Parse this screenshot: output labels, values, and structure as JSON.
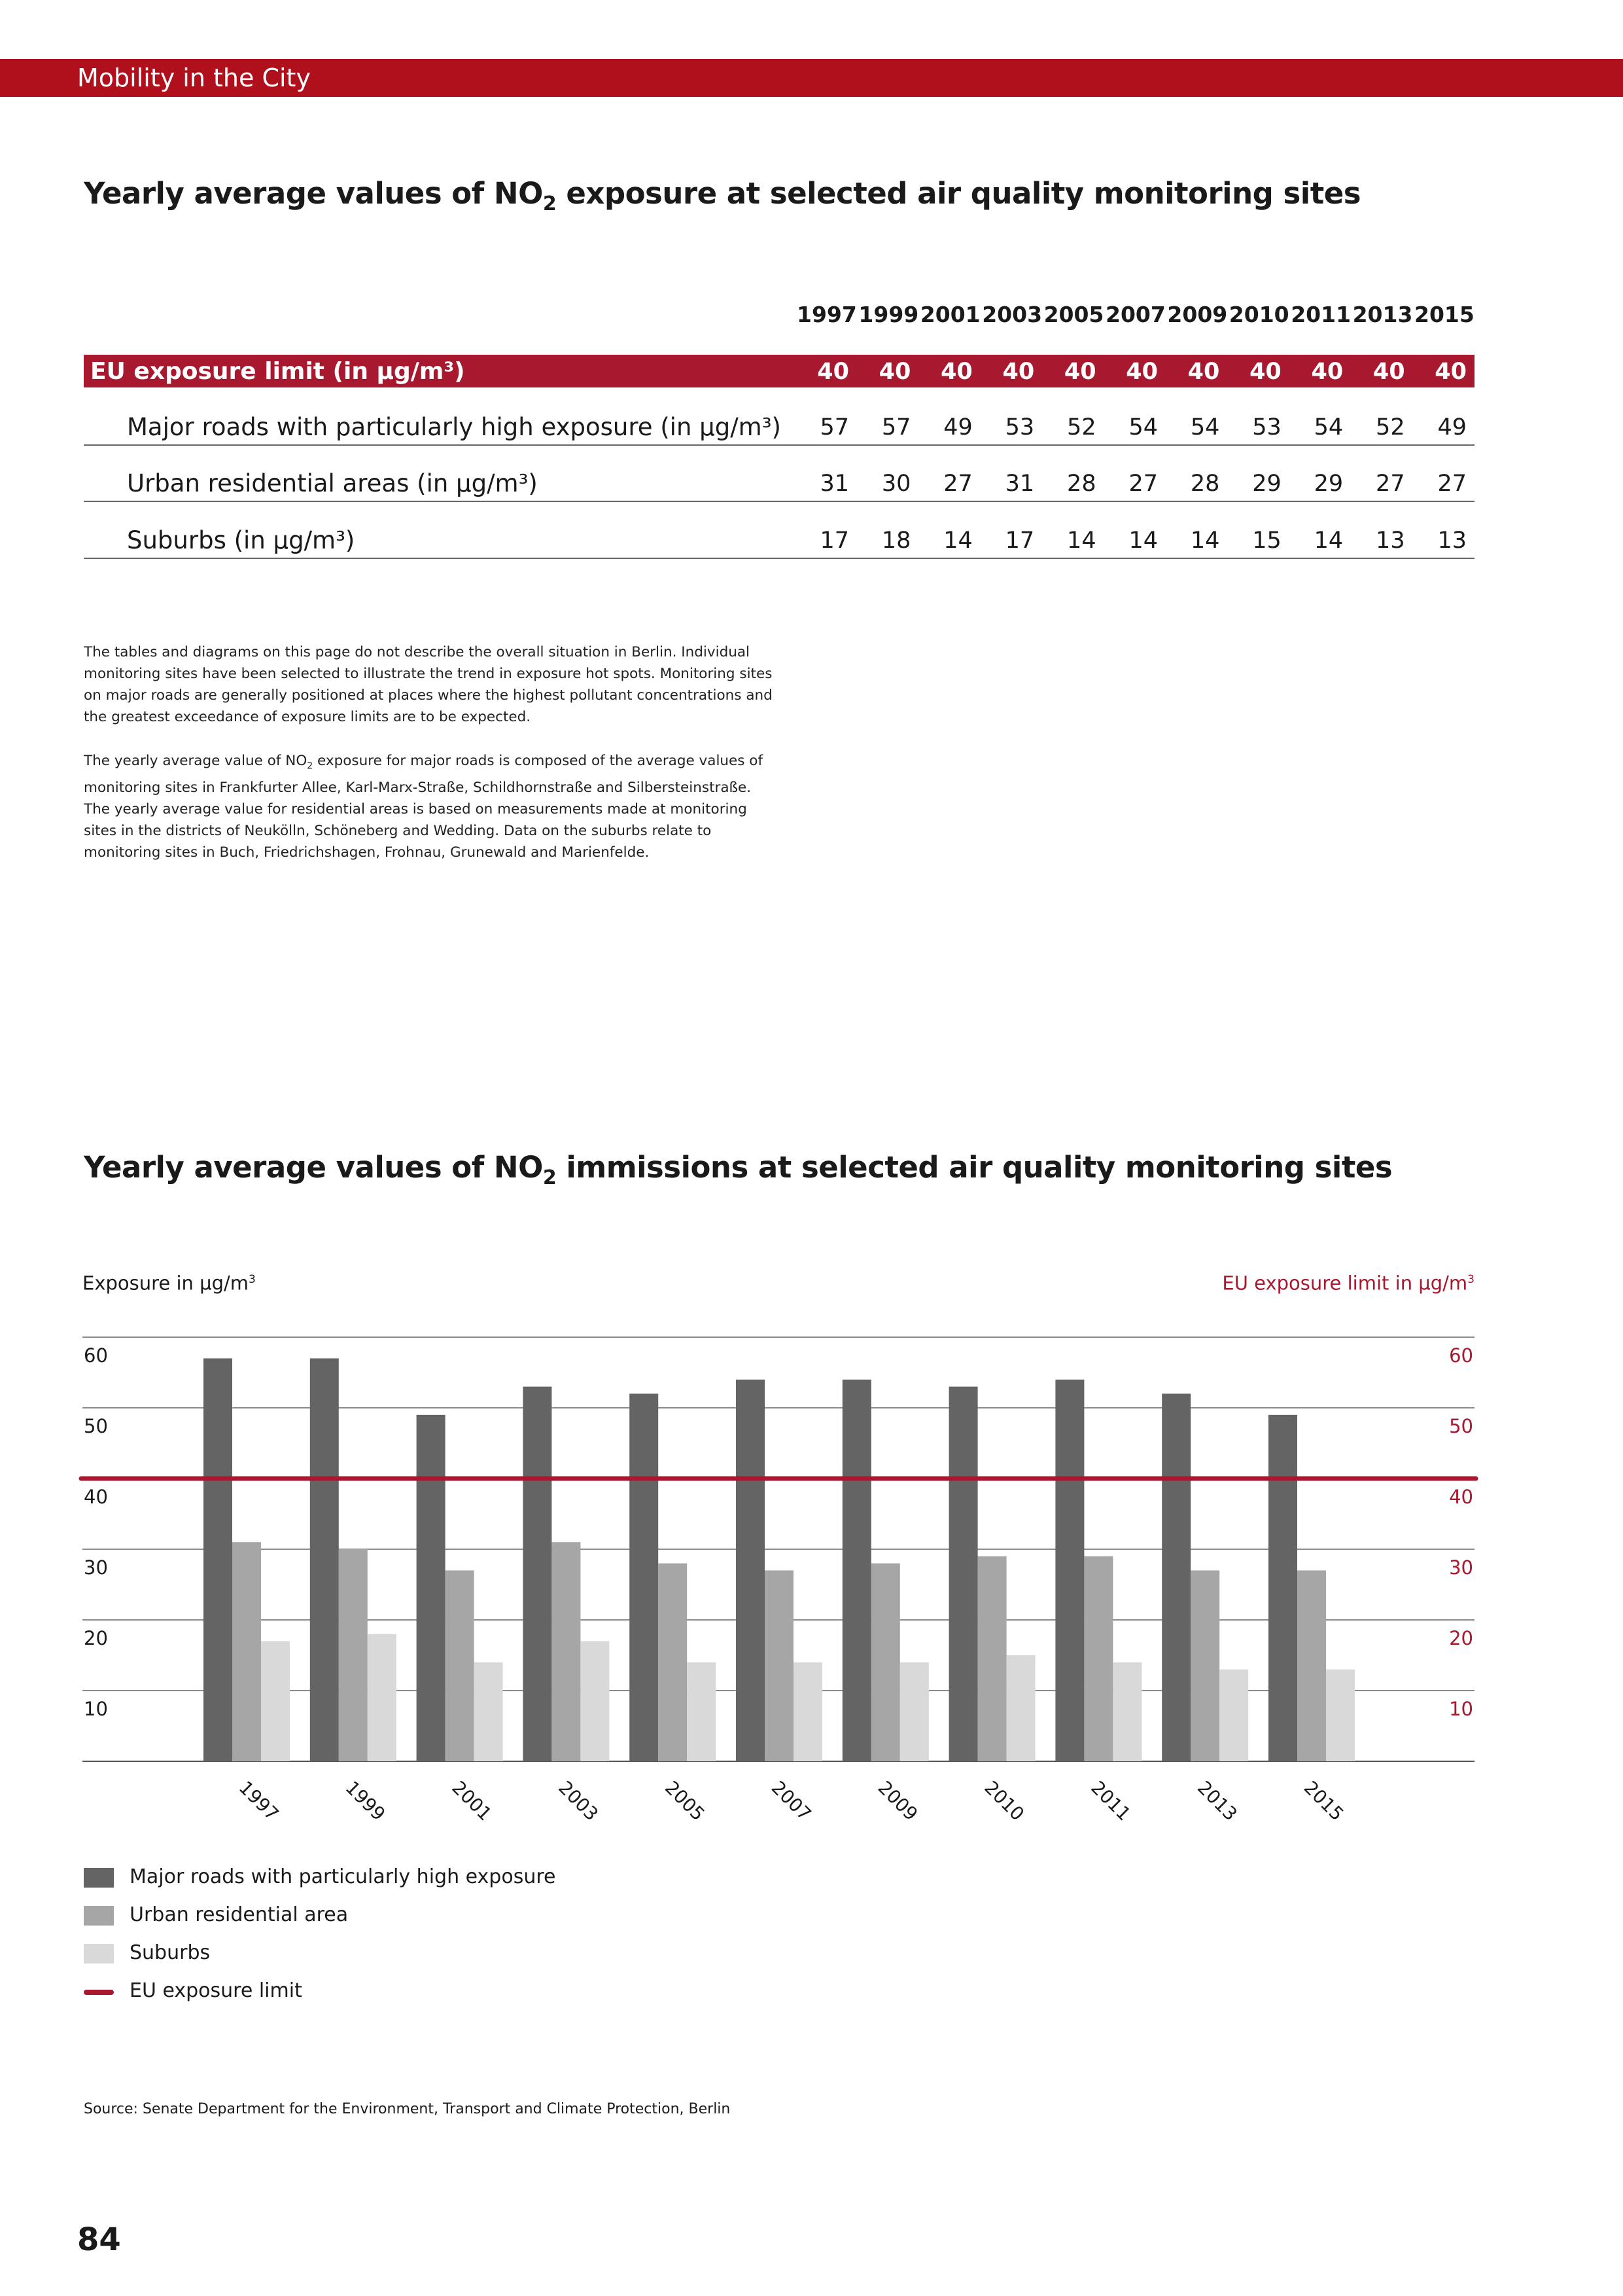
{
  "header": {
    "section": "Mobility in the City"
  },
  "table_section": {
    "title_pre": "Yearly average values of NO",
    "title_sub": "2",
    "title_post": " exposure at selected air quality monitoring sites",
    "years": [
      "1997",
      "1999",
      "2001",
      "2003",
      "2005",
      "2007",
      "2009",
      "2010",
      "2011",
      "2013",
      "2015"
    ],
    "rows": [
      {
        "label": "EU exposure limit (in µg/m³)",
        "values": [
          "40",
          "40",
          "40",
          "40",
          "40",
          "40",
          "40",
          "40",
          "40",
          "40",
          "40"
        ]
      },
      {
        "label": "Major roads with particularly high exposure (in µg/m³)",
        "values": [
          "57",
          "57",
          "49",
          "53",
          "52",
          "54",
          "54",
          "53",
          "54",
          "52",
          "49"
        ]
      },
      {
        "label": "Urban residential areas (in µg/m³)",
        "values": [
          "31",
          "30",
          "27",
          "31",
          "28",
          "27",
          "28",
          "29",
          "29",
          "27",
          "27"
        ]
      },
      {
        "label": "Suburbs (in µg/m³)",
        "values": [
          "17",
          "18",
          "14",
          "17",
          "14",
          "14",
          "14",
          "15",
          "14",
          "13",
          "13"
        ]
      }
    ]
  },
  "notes": {
    "p1": "The tables and diagrams on this page do not describe the overall situation in Berlin. Individual monitoring sites have been selected to illustrate the trend in exposure hot spots. Monitoring sites on major roads are generally positioned at places where the highest pollutant concentrations and the greatest exceedance of exposure limits are to be expected.",
    "p2_pre": "The yearly average value of NO",
    "p2_sub": "2",
    "p2_post": " exposure for major roads is composed of the average values of monitoring sites in Frankfurter Allee, Karl-Marx-Straße, Schildhornstraße and Silbersteinstraße. The yearly average value for residential areas is based on measurements made at monitoring sites in the districts of Neukölln, Schöneberg and Wedding. Data on the suburbs relate to monitoring sites in Buch, Friedrichshagen, Frohnau, Grunewald and Marienfelde."
  },
  "chart_section": {
    "title_pre": "Yearly average values of NO",
    "title_sub": "2",
    "title_post": " immissions at selected air quality monitoring sites"
  },
  "chart_data": {
    "type": "bar",
    "title": "Yearly average values of NO2 immissions at selected air quality monitoring sites",
    "ylabel_left": "Exposure in µg/m",
    "ylabel_left_sup": "3",
    "ylabel_right": "EU exposure limit in µg/m",
    "ylabel_right_sup": "3",
    "ylim": [
      0,
      60
    ],
    "yticks": [
      10,
      20,
      30,
      40,
      50,
      60
    ],
    "grid": true,
    "categories": [
      "1997",
      "1999",
      "2001",
      "2003",
      "2005",
      "2007",
      "2009",
      "2010",
      "2011",
      "2013",
      "2015"
    ],
    "series": [
      {
        "name": "Major roads with particularly high exposure",
        "color": "#646464",
        "values": [
          57,
          57,
          49,
          53,
          52,
          54,
          54,
          53,
          54,
          52,
          49
        ]
      },
      {
        "name": "Urban residential area",
        "color": "#a6a6a6",
        "values": [
          31,
          30,
          27,
          31,
          28,
          27,
          28,
          29,
          29,
          27,
          27
        ]
      },
      {
        "name": "Suburbs",
        "color": "#d9d9d9",
        "values": [
          17,
          18,
          14,
          17,
          14,
          14,
          14,
          15,
          14,
          13,
          13
        ]
      }
    ],
    "reference_line": {
      "name": "EU exposure limit",
      "value": 40,
      "color": "#a8182e"
    },
    "legend_position": "bottom-left"
  },
  "legend": {
    "items": [
      "Major roads with particularly high exposure",
      "Urban residential area",
      "Suburbs",
      "EU exposure limit"
    ]
  },
  "source": "Source: Senate Department for the Environment, Transport and Climate Protection, Berlin",
  "page_number": "84"
}
